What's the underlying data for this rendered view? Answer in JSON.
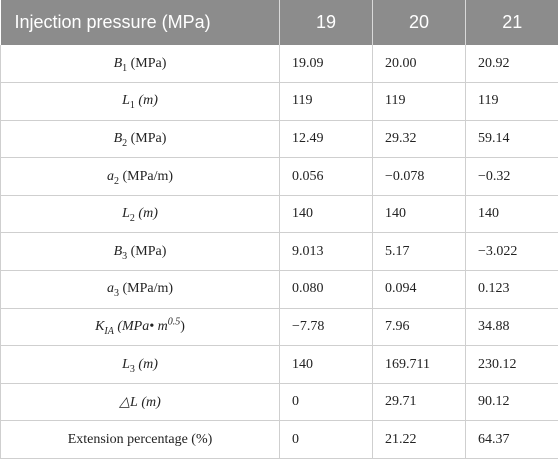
{
  "header": {
    "label": "Injection pressure (MPa)",
    "cols": [
      "19",
      "20",
      "21"
    ]
  },
  "rows": [
    {
      "sym": "B",
      "sub": "1",
      "sup": "",
      "unit": "(MPa)",
      "unit_italic": false,
      "values": [
        "19.09",
        "20.00",
        "20.92"
      ]
    },
    {
      "sym": "L",
      "sub": "1",
      "sup": "",
      "unit": "(m)",
      "unit_italic": true,
      "values": [
        "119",
        "119",
        "119"
      ]
    },
    {
      "sym": "B",
      "sub": "2",
      "sup": "",
      "unit": "(MPa)",
      "unit_italic": false,
      "values": [
        "12.49",
        "29.32",
        "59.14"
      ]
    },
    {
      "sym": "a",
      "sub": "2",
      "sup": "",
      "unit": "(MPa/m)",
      "unit_italic": false,
      "values": [
        "0.056",
        "−0.078",
        "−0.32"
      ]
    },
    {
      "sym": "L",
      "sub": "2",
      "sup": "",
      "unit": "(m)",
      "unit_italic": true,
      "values": [
        "140",
        "140",
        "140"
      ]
    },
    {
      "sym": "B",
      "sub": "3",
      "sup": "",
      "unit": "(MPa)",
      "unit_italic": false,
      "values": [
        "9.013",
        "5.17",
        "−3.022"
      ]
    },
    {
      "sym": "a",
      "sub": "3",
      "sup": "",
      "unit": "(MPa/m)",
      "unit_italic": false,
      "values": [
        "0.080",
        "0.094",
        "0.123"
      ]
    },
    {
      "sym": "K",
      "sub": "IA",
      "sup": "0.5",
      "unit": "(MPa• m",
      "unit_close": ")",
      "unit_italic": true,
      "values": [
        "−7.78",
        "7.96",
        "34.88"
      ]
    },
    {
      "sym": "L",
      "sub": "3",
      "sup": "",
      "unit": "(m)",
      "unit_italic": true,
      "values": [
        "140",
        "169.711",
        "230.12"
      ]
    },
    {
      "sym": "△L",
      "sub": "",
      "sup": "",
      "unit": "(m)",
      "unit_italic": true,
      "values": [
        "0",
        "29.71",
        "90.12"
      ]
    },
    {
      "sym": "",
      "sub": "",
      "sup": "",
      "unit": "",
      "unit_italic": false,
      "plain": "Extension percentage (%)",
      "values": [
        "0",
        "21.22",
        "64.37"
      ]
    }
  ]
}
